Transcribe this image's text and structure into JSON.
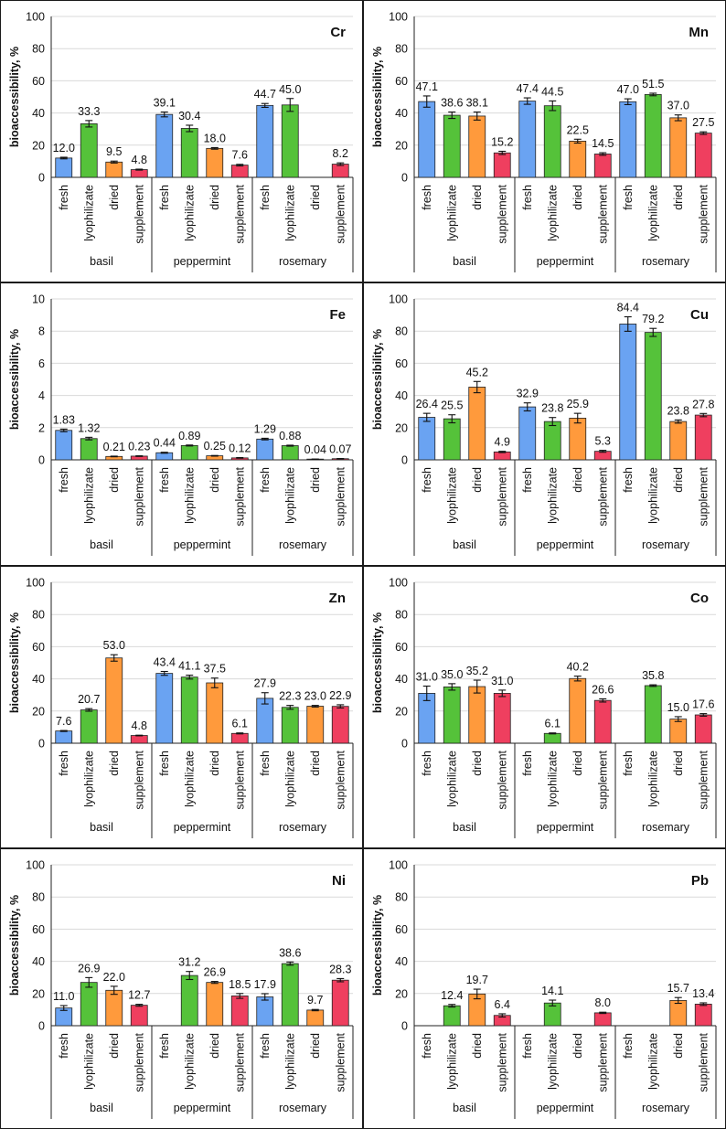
{
  "chart_data": [
    {
      "type": "bar",
      "element": "Cr",
      "ylabel": "bioaccessibility, %",
      "ylim": [
        0,
        100
      ],
      "ytick_step": 20,
      "ytick_labels": [
        "0",
        "20",
        "40",
        "60",
        "80",
        "100"
      ],
      "groups": [
        "basil",
        "peppermint",
        "rosemary"
      ],
      "forms": [
        "fresh",
        "lyophilizate",
        "dried",
        "supplement"
      ],
      "values": [
        [
          12.0,
          33.3,
          9.5,
          4.8
        ],
        [
          39.1,
          30.4,
          18.0,
          7.6
        ],
        [
          44.7,
          45.0,
          null,
          8.2
        ]
      ],
      "labels": [
        [
          "12.0",
          "33.3",
          "9.5",
          "4.8"
        ],
        [
          "39.1",
          "30.4",
          "18.0",
          "7.6"
        ],
        [
          "44.7",
          "45.0",
          null,
          "8.2"
        ]
      ],
      "errors": [
        [
          0.5,
          2.0,
          0.6,
          0.3
        ],
        [
          1.5,
          2.0,
          0.5,
          0.5
        ],
        [
          1.2,
          4.0,
          null,
          0.8
        ]
      ]
    },
    {
      "type": "bar",
      "element": "Mn",
      "ylabel": "bioaccessibility, %",
      "ylim": [
        0,
        100
      ],
      "ytick_step": 20,
      "ytick_labels": [
        "0",
        "20",
        "40",
        "60",
        "80",
        "100"
      ],
      "groups": [
        "basil",
        "peppermint",
        "rosemary"
      ],
      "forms": [
        "fresh",
        "lyophilizate",
        "dried",
        "supplement"
      ],
      "values": [
        [
          47.1,
          38.6,
          38.1,
          15.2
        ],
        [
          47.4,
          44.5,
          22.5,
          14.5
        ],
        [
          47.0,
          51.5,
          37.0,
          27.5
        ]
      ],
      "labels": [
        [
          "47.1",
          "38.6",
          "38.1",
          "15.2"
        ],
        [
          "47.4",
          "44.5",
          "22.5",
          "14.5"
        ],
        [
          "47.0",
          "51.5",
          "37.0",
          "27.5"
        ]
      ],
      "errors": [
        [
          3.5,
          2.0,
          2.5,
          1.0
        ],
        [
          2.0,
          3.0,
          1.2,
          0.8
        ],
        [
          1.8,
          0.8,
          1.8,
          0.8
        ]
      ]
    },
    {
      "type": "bar",
      "element": "Fe",
      "ylabel": "bioaccessibility, %",
      "ylim": [
        0,
        10
      ],
      "ytick_step": 2,
      "ytick_labels": [
        "0",
        "2",
        "4",
        "6",
        "8",
        "10"
      ],
      "groups": [
        "basil",
        "peppermint",
        "rosemary"
      ],
      "forms": [
        "fresh",
        "lyophilizate",
        "dried",
        "supplement"
      ],
      "values": [
        [
          1.83,
          1.32,
          0.21,
          0.23
        ],
        [
          0.44,
          0.89,
          0.25,
          0.12
        ],
        [
          1.29,
          0.88,
          0.04,
          0.07
        ]
      ],
      "labels": [
        [
          "1.83",
          "1.32",
          "0.21",
          "0.23"
        ],
        [
          "0.44",
          "0.89",
          "0.25",
          "0.12"
        ],
        [
          "1.29",
          "0.88",
          "0.04",
          "0.07"
        ]
      ],
      "errors": [
        [
          0.08,
          0.08,
          0.02,
          0.02
        ],
        [
          0.03,
          0.03,
          0.02,
          0.02
        ],
        [
          0.05,
          0.03,
          0.01,
          0.01
        ]
      ]
    },
    {
      "type": "bar",
      "element": "Cu",
      "ylabel": "bioaccessibility, %",
      "ylim": [
        0,
        100
      ],
      "ytick_step": 20,
      "ytick_labels": [
        "0",
        "20",
        "40",
        "60",
        "80",
        "100"
      ],
      "groups": [
        "basil",
        "peppermint",
        "rosemary"
      ],
      "forms": [
        "fresh",
        "lyophilizate",
        "dried",
        "supplement"
      ],
      "values": [
        [
          26.4,
          25.5,
          45.2,
          4.9
        ],
        [
          32.9,
          23.8,
          25.9,
          5.3
        ],
        [
          84.4,
          79.2,
          23.8,
          27.8
        ]
      ],
      "labels": [
        [
          "26.4",
          "25.5",
          "45.2",
          "4.9"
        ],
        [
          "32.9",
          "23.8",
          "25.9",
          "5.3"
        ],
        [
          "84.4",
          "79.2",
          "23.8",
          "27.8"
        ]
      ],
      "errors": [
        [
          2.5,
          2.5,
          3.5,
          0.4
        ],
        [
          2.5,
          2.5,
          3.0,
          0.6
        ],
        [
          4.5,
          2.5,
          1.0,
          1.0
        ]
      ]
    },
    {
      "type": "bar",
      "element": "Zn",
      "ylabel": "bioaccessibility, %",
      "ylim": [
        0,
        100
      ],
      "ytick_step": 20,
      "ytick_labels": [
        "0",
        "20",
        "40",
        "60",
        "80",
        "100"
      ],
      "groups": [
        "basil",
        "peppermint",
        "rosemary"
      ],
      "forms": [
        "fresh",
        "lyophilizate",
        "dried",
        "supplement"
      ],
      "values": [
        [
          7.6,
          20.7,
          53.0,
          4.8
        ],
        [
          43.4,
          41.1,
          37.5,
          6.1
        ],
        [
          27.9,
          22.3,
          23.0,
          22.9
        ]
      ],
      "labels": [
        [
          "7.6",
          "20.7",
          "53.0",
          "4.8"
        ],
        [
          "43.4",
          "41.1",
          "37.5",
          "6.1"
        ],
        [
          "27.9",
          "22.3",
          "23.0",
          "22.9"
        ]
      ],
      "errors": [
        [
          0.3,
          0.8,
          2.0,
          0.2
        ],
        [
          1.2,
          1.2,
          3.0,
          0.3
        ],
        [
          3.5,
          1.2,
          0.5,
          1.0
        ]
      ]
    },
    {
      "type": "bar",
      "element": "Co",
      "ylabel": "bioaccessibility, %",
      "ylim": [
        0,
        100
      ],
      "ytick_step": 20,
      "ytick_labels": [
        "0",
        "20",
        "40",
        "60",
        "80",
        "100"
      ],
      "groups": [
        "basil",
        "peppermint",
        "rosemary"
      ],
      "forms": [
        "fresh",
        "lyophilizate",
        "dried",
        "supplement"
      ],
      "values": [
        [
          31.0,
          35.0,
          35.2,
          31.0
        ],
        [
          null,
          6.1,
          40.2,
          26.6
        ],
        [
          null,
          35.8,
          15.0,
          17.6
        ]
      ],
      "labels": [
        [
          "31.0",
          "35.0",
          "35.2",
          "31.0"
        ],
        [
          null,
          "6.1",
          "40.2",
          "26.6"
        ],
        [
          null,
          "35.8",
          "15.0",
          "17.6"
        ]
      ],
      "errors": [
        [
          4.5,
          2.0,
          4.0,
          2.0
        ],
        [
          null,
          0.3,
          1.5,
          1.0
        ],
        [
          null,
          0.5,
          1.5,
          0.8
        ]
      ]
    },
    {
      "type": "bar",
      "element": "Ni",
      "ylabel": "bioaccessibility, %",
      "ylim": [
        0,
        100
      ],
      "ytick_step": 20,
      "ytick_labels": [
        "0",
        "20",
        "40",
        "60",
        "80",
        "100"
      ],
      "groups": [
        "basil",
        "peppermint",
        "rosemary"
      ],
      "forms": [
        "fresh",
        "lyophilizate",
        "dried",
        "supplement"
      ],
      "values": [
        [
          11.0,
          26.9,
          22.0,
          12.7
        ],
        [
          null,
          31.2,
          26.9,
          18.5
        ],
        [
          17.9,
          38.6,
          9.7,
          28.3
        ]
      ],
      "labels": [
        [
          "11.0",
          "26.9",
          "22.0",
          "12.7"
        ],
        [
          null,
          "31.2",
          "26.9",
          "18.5"
        ],
        [
          "17.9",
          "38.6",
          "9.7",
          "28.3"
        ]
      ],
      "errors": [
        [
          1.5,
          3.0,
          2.5,
          0.6
        ],
        [
          null,
          2.5,
          0.6,
          1.5
        ],
        [
          2.0,
          1.0,
          0.4,
          1.0
        ]
      ]
    },
    {
      "type": "bar",
      "element": "Pb",
      "ylabel": "bioaccessibility, %",
      "ylim": [
        0,
        100
      ],
      "ytick_step": 20,
      "ytick_labels": [
        "0",
        "20",
        "40",
        "60",
        "80",
        "100"
      ],
      "groups": [
        "basil",
        "peppermint",
        "rosemary"
      ],
      "forms": [
        "fresh",
        "lyophilizate",
        "dried",
        "supplement"
      ],
      "values": [
        [
          null,
          12.4,
          19.7,
          6.4
        ],
        [
          null,
          14.1,
          null,
          8.0
        ],
        [
          null,
          null,
          15.7,
          13.4
        ]
      ],
      "labels": [
        [
          null,
          "12.4",
          "19.7",
          "6.4"
        ],
        [
          null,
          "14.1",
          null,
          "8.0"
        ],
        [
          null,
          null,
          "15.7",
          "13.4"
        ]
      ],
      "errors": [
        [
          null,
          0.8,
          3.0,
          1.0
        ],
        [
          null,
          1.8,
          null,
          0.4
        ],
        [
          null,
          null,
          1.8,
          0.8
        ]
      ]
    }
  ],
  "colors": {
    "fresh": "#6aa3f2",
    "lyophilizate": "#55c23a",
    "dried": "#ff9a3c",
    "supplement": "#ef3f5f",
    "grid": "#d9d9d9",
    "border": "#1a1a1a"
  }
}
